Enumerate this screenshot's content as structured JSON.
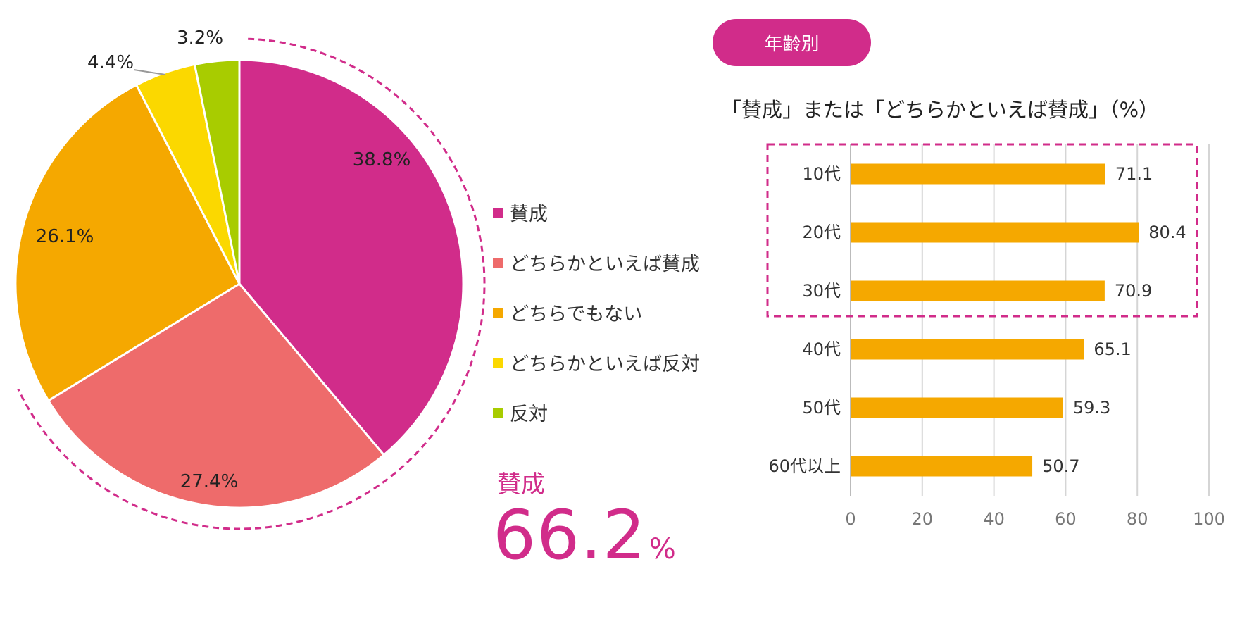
{
  "colors": {
    "accent": "#d12c8a",
    "sansei": "#d12c8a",
    "dochiraka_sansei": "#ee6b6b",
    "dochira_demo": "#f5a800",
    "dochiraka_hantai": "#fbd800",
    "hantai": "#a8cc00",
    "bar": "#f5a800"
  },
  "legend": {
    "items": [
      {
        "label": "賛成",
        "color": "#d12c8a"
      },
      {
        "label": "どちらかといえば賛成",
        "color": "#ee6b6b"
      },
      {
        "label": "どちらでもない",
        "color": "#f5a800"
      },
      {
        "label": "どちらかといえば反対",
        "color": "#fbd800"
      },
      {
        "label": "反対",
        "color": "#a8cc00"
      }
    ]
  },
  "summary": {
    "label": "賛成",
    "value": "66.2",
    "unit": "%"
  },
  "age_pill": {
    "label": "年齢別"
  },
  "chart_data": [
    {
      "type": "pie",
      "slices": [
        {
          "name": "賛成",
          "value": 38.8,
          "label": "38.8%",
          "color": "#d12c8a"
        },
        {
          "name": "どちらかといえば賛成",
          "value": 27.4,
          "label": "27.4%",
          "color": "#ee6b6b"
        },
        {
          "name": "どちらでもない",
          "value": 26.1,
          "label": "26.1%",
          "color": "#f5a800"
        },
        {
          "name": "どちらかといえば反対",
          "value": 4.4,
          "label": "4.4%",
          "color": "#fbd800"
        },
        {
          "name": "反対",
          "value": 3.2,
          "label": "3.2%",
          "color": "#a8cc00"
        }
      ],
      "start": "12 o'clock, clockwise",
      "highlight": "dashed arc around 賛成 + どちらかといえば賛成"
    },
    {
      "type": "bar",
      "orientation": "horizontal",
      "title": "「賛成」または「どちらかといえば賛成」（%）",
      "categories": [
        "10代",
        "20代",
        "30代",
        "40代",
        "50代",
        "60代以上"
      ],
      "values": [
        71.1,
        80.4,
        70.9,
        65.1,
        59.3,
        50.7
      ],
      "value_labels": [
        "71.1",
        "80.4",
        "70.9",
        "65.1",
        "59.3",
        "50.7"
      ],
      "xlim": [
        0,
        100
      ],
      "xticks": [
        0,
        20,
        40,
        60,
        80,
        100
      ],
      "xtick_labels": [
        "0",
        "20",
        "40",
        "60",
        "80",
        "100"
      ],
      "grid": "vertical lines",
      "highlight": "dashed box around 10代-30代"
    }
  ]
}
